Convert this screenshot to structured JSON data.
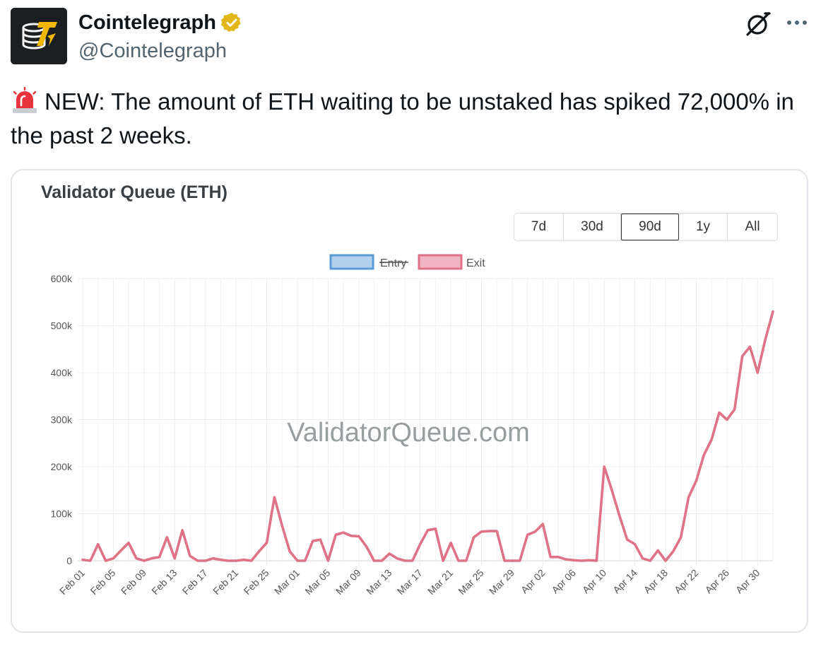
{
  "author": {
    "name": "Cointelegraph",
    "handle": "@Cointelegraph",
    "avatar_icon": "cointelegraph-logo",
    "verified_icon": "verified-badge-icon",
    "verified_color": "#e2b719"
  },
  "tweet": {
    "emoji_icon": "police-siren-icon",
    "text": "NEW: The amount of ETH waiting to be unstaked has spiked 72,000% in the past 2 weeks."
  },
  "actions": {
    "grok_icon": "grok-icon",
    "more_icon": "more-dots-icon"
  },
  "chart_card": {
    "title": "Validator Queue (ETH)",
    "watermark": "ValidatorQueue.com",
    "ranges": [
      {
        "label": "7d",
        "active": false
      },
      {
        "label": "30d",
        "active": false
      },
      {
        "label": "90d",
        "active": true
      },
      {
        "label": "1y",
        "active": false
      },
      {
        "label": "All",
        "active": false
      }
    ]
  },
  "chart_data": {
    "type": "line",
    "title": "Validator Queue (ETH)",
    "xlabel": "",
    "ylabel": "",
    "ylim": [
      0,
      600000
    ],
    "yticks": [
      "0",
      "100k",
      "200k",
      "300k",
      "400k",
      "500k",
      "600k"
    ],
    "grid": true,
    "legend_position": "top-center",
    "legend": [
      {
        "name": "Entry",
        "hidden": true,
        "color": "#5b9bd5"
      },
      {
        "name": "Exit",
        "hidden": false,
        "color": "#e07288"
      }
    ],
    "x_tick_labels": [
      "Feb 01",
      "Feb 05",
      "Feb 09",
      "Feb 13",
      "Feb 17",
      "Feb 21",
      "Feb 25",
      "Mar 01",
      "Mar 05",
      "Mar 09",
      "Mar 13",
      "Mar 17",
      "Mar 21",
      "Mar 25",
      "Mar 29",
      "Apr 02",
      "Apr 06",
      "Apr 10",
      "Apr 14",
      "Apr 18",
      "Apr 22",
      "Apr 26",
      "Apr 30"
    ],
    "series": [
      {
        "name": "Exit",
        "color": "#e07288",
        "values": [
          2000,
          0,
          35000,
          0,
          5000,
          22000,
          38000,
          5000,
          0,
          5000,
          8000,
          50000,
          5000,
          65000,
          10000,
          0,
          0,
          5000,
          2000,
          0,
          0,
          2000,
          0,
          20000,
          38000,
          135000,
          75000,
          20000,
          0,
          0,
          42000,
          45000,
          0,
          55000,
          60000,
          53000,
          52000,
          30000,
          0,
          0,
          15000,
          5000,
          0,
          0,
          35000,
          65000,
          68000,
          0,
          38000,
          0,
          0,
          50000,
          62000,
          63000,
          63000,
          0,
          0,
          0,
          55000,
          62000,
          78000,
          8000,
          8000,
          3000,
          1000,
          0,
          1000,
          0,
          200000,
          150000,
          95000,
          45000,
          35000,
          5000,
          0,
          22000,
          0,
          20000,
          50000,
          135000,
          170000,
          225000,
          258000,
          315000,
          300000,
          322000,
          435000,
          455000,
          400000,
          470000,
          530000
        ]
      }
    ]
  }
}
